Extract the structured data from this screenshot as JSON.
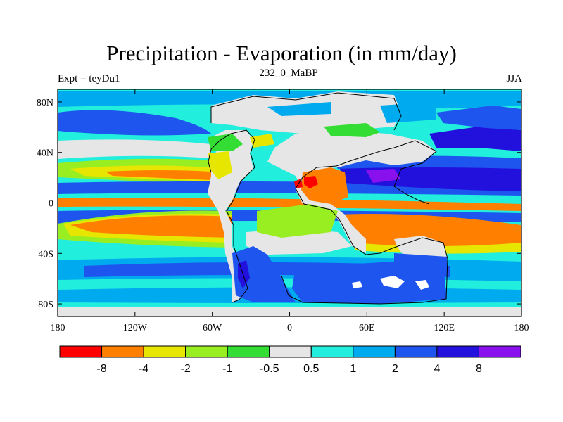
{
  "chart_data": {
    "type": "heatmap",
    "title": "Precipitation - Evaporation (in mm/day)",
    "left_label": "Expt = teyDu1",
    "center_label": "232_0_MaBP",
    "right_label": "JJA",
    "x_ticks": [
      "180",
      "120W",
      "60W",
      "0",
      "60E",
      "120E",
      "180"
    ],
    "y_ticks": [
      "80N",
      "40N",
      "0",
      "40S",
      "80S"
    ],
    "xlim": [
      -180,
      180
    ],
    "ylim": [
      -90,
      90
    ],
    "colorbar": {
      "levels": [
        "-8",
        "-4",
        "-2",
        "-1",
        "-0.5",
        "0.5",
        "1",
        "2",
        "4",
        "8"
      ],
      "colors": [
        "#ff0000",
        "#ff8000",
        "#e6e600",
        "#99ee22",
        "#33dd33",
        "#e6e6e6",
        "#22eedd",
        "#00aaee",
        "#1d55ee",
        "#2211dd",
        "#8811ee"
      ]
    },
    "land_color": "#e6e6e6"
  }
}
